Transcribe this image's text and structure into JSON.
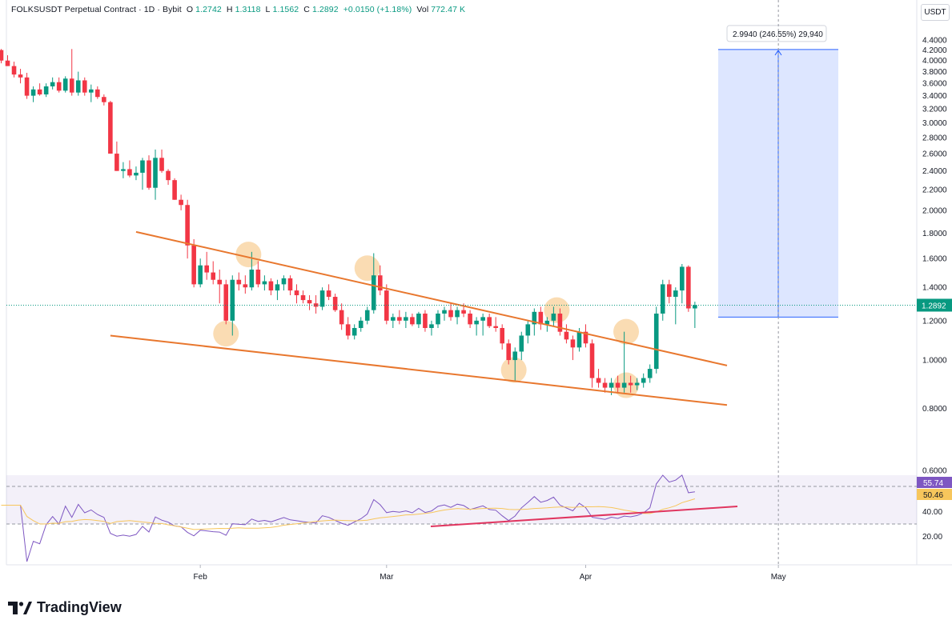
{
  "header": {
    "symbol": "FOLKSUSDT Perpetual Contract · 1D · Bybit",
    "open_label": "O",
    "open": "1.2742",
    "high_label": "H",
    "high": "1.3118",
    "low_label": "L",
    "low": "1.1562",
    "close_label": "C",
    "close": "1.2892",
    "change": "+0.0150 (+1.18%)",
    "vol_label": "Vol",
    "vol": "772.47 K"
  },
  "currency_badge": "USDT",
  "brand": "TradingView",
  "colors": {
    "up": "#089981",
    "down": "#f23645",
    "trendline": "#e8772e",
    "measure": "#2962ff",
    "rsi": "#7e57c2",
    "rsi_ma": "#f7c65c",
    "rsi_support": "#e0355f",
    "highlight": "#f8c98a"
  },
  "chart_data": {
    "type": "candlestick",
    "symbol": "FOLKSUSDT",
    "timeframe": "1D",
    "x_tick_labels": [
      "Feb",
      "Mar",
      "Apr",
      "May"
    ],
    "price_axis": {
      "scale": "log",
      "ticks": [
        "4.4000",
        "4.2000",
        "4.0000",
        "3.8000",
        "3.6000",
        "3.4000",
        "3.2000",
        "3.0000",
        "2.8000",
        "2.6000",
        "2.4000",
        "2.2000",
        "2.0000",
        "1.8000",
        "1.6000",
        "1.4000",
        "1.2000",
        "1.0000",
        "0.8000",
        "0.6000"
      ],
      "last_price": "1.2892"
    },
    "candles": [
      [
        4.2,
        4.22,
        3.95,
        4.0
      ],
      [
        4.0,
        4.1,
        3.9,
        3.9
      ],
      [
        3.9,
        3.98,
        3.7,
        3.75
      ],
      [
        3.75,
        3.85,
        3.6,
        3.7
      ],
      [
        3.7,
        3.78,
        3.35,
        3.4
      ],
      [
        3.4,
        3.55,
        3.3,
        3.5
      ],
      [
        3.5,
        3.6,
        3.4,
        3.42
      ],
      [
        3.42,
        3.6,
        3.38,
        3.55
      ],
      [
        3.55,
        3.7,
        3.5,
        3.62
      ],
      [
        3.62,
        3.7,
        3.45,
        3.48
      ],
      [
        3.48,
        3.72,
        3.45,
        3.68
      ],
      [
        3.68,
        4.22,
        3.4,
        3.45
      ],
      [
        3.45,
        3.8,
        3.4,
        3.65
      ],
      [
        3.65,
        3.7,
        3.4,
        3.45
      ],
      [
        3.45,
        3.58,
        3.3,
        3.5
      ],
      [
        3.5,
        3.55,
        3.35,
        3.38
      ],
      [
        3.38,
        3.42,
        3.25,
        3.3
      ],
      [
        3.3,
        3.32,
        2.6,
        2.6
      ],
      [
        2.6,
        2.75,
        2.4,
        2.4
      ],
      [
        2.4,
        2.5,
        2.32,
        2.42
      ],
      [
        2.42,
        2.52,
        2.33,
        2.35
      ],
      [
        2.35,
        2.45,
        2.3,
        2.38
      ],
      [
        2.38,
        2.55,
        2.2,
        2.52
      ],
      [
        2.52,
        2.58,
        2.2,
        2.22
      ],
      [
        2.22,
        2.65,
        2.1,
        2.55
      ],
      [
        2.55,
        2.65,
        2.38,
        2.4
      ],
      [
        2.4,
        2.42,
        2.25,
        2.3
      ],
      [
        2.3,
        2.32,
        2.1,
        2.1
      ],
      [
        2.1,
        2.15,
        2.0,
        2.05
      ],
      [
        2.05,
        2.1,
        1.6,
        1.7
      ],
      [
        1.7,
        1.75,
        1.4,
        1.42
      ],
      [
        1.42,
        1.6,
        1.4,
        1.55
      ],
      [
        1.55,
        1.65,
        1.45,
        1.5
      ],
      [
        1.5,
        1.58,
        1.42,
        1.45
      ],
      [
        1.45,
        1.52,
        1.3,
        1.42
      ],
      [
        1.42,
        1.45,
        1.18,
        1.2
      ],
      [
        1.2,
        1.48,
        1.12,
        1.45
      ],
      [
        1.45,
        1.5,
        1.38,
        1.42
      ],
      [
        1.42,
        1.48,
        1.36,
        1.4
      ],
      [
        1.4,
        1.65,
        1.38,
        1.52
      ],
      [
        1.52,
        1.58,
        1.4,
        1.42
      ],
      [
        1.42,
        1.48,
        1.38,
        1.44
      ],
      [
        1.44,
        1.46,
        1.35,
        1.38
      ],
      [
        1.38,
        1.45,
        1.32,
        1.42
      ],
      [
        1.42,
        1.48,
        1.38,
        1.46
      ],
      [
        1.46,
        1.48,
        1.35,
        1.38
      ],
      [
        1.38,
        1.42,
        1.3,
        1.35
      ],
      [
        1.35,
        1.38,
        1.3,
        1.32
      ],
      [
        1.32,
        1.35,
        1.26,
        1.3
      ],
      [
        1.3,
        1.35,
        1.24,
        1.28
      ],
      [
        1.28,
        1.4,
        1.26,
        1.38
      ],
      [
        1.38,
        1.42,
        1.32,
        1.34
      ],
      [
        1.34,
        1.36,
        1.25,
        1.26
      ],
      [
        1.26,
        1.3,
        1.15,
        1.18
      ],
      [
        1.18,
        1.22,
        1.1,
        1.12
      ],
      [
        1.12,
        1.18,
        1.1,
        1.16
      ],
      [
        1.16,
        1.22,
        1.14,
        1.2
      ],
      [
        1.2,
        1.28,
        1.18,
        1.26
      ],
      [
        1.26,
        1.64,
        1.24,
        1.48
      ],
      [
        1.48,
        1.55,
        1.35,
        1.38
      ],
      [
        1.38,
        1.42,
        1.18,
        1.2
      ],
      [
        1.2,
        1.24,
        1.16,
        1.22
      ],
      [
        1.22,
        1.26,
        1.18,
        1.2
      ],
      [
        1.2,
        1.25,
        1.16,
        1.22
      ],
      [
        1.22,
        1.24,
        1.17,
        1.18
      ],
      [
        1.18,
        1.25,
        1.16,
        1.24
      ],
      [
        1.24,
        1.26,
        1.14,
        1.16
      ],
      [
        1.16,
        1.2,
        1.12,
        1.18
      ],
      [
        1.18,
        1.26,
        1.16,
        1.24
      ],
      [
        1.24,
        1.28,
        1.2,
        1.26
      ],
      [
        1.26,
        1.3,
        1.2,
        1.22
      ],
      [
        1.22,
        1.28,
        1.18,
        1.26
      ],
      [
        1.26,
        1.3,
        1.22,
        1.24
      ],
      [
        1.24,
        1.26,
        1.16,
        1.18
      ],
      [
        1.18,
        1.22,
        1.12,
        1.2
      ],
      [
        1.2,
        1.24,
        1.12,
        1.22
      ],
      [
        1.22,
        1.24,
        1.16,
        1.17
      ],
      [
        1.17,
        1.22,
        1.14,
        1.16
      ],
      [
        1.16,
        1.18,
        1.05,
        1.08
      ],
      [
        1.08,
        1.1,
        0.98,
        1.0
      ],
      [
        1.0,
        1.06,
        0.91,
        1.04
      ],
      [
        1.04,
        1.14,
        1.0,
        1.12
      ],
      [
        1.12,
        1.2,
        1.08,
        1.18
      ],
      [
        1.18,
        1.27,
        1.12,
        1.25
      ],
      [
        1.25,
        1.28,
        1.15,
        1.18
      ],
      [
        1.18,
        1.22,
        1.14,
        1.2
      ],
      [
        1.2,
        1.28,
        1.17,
        1.24
      ],
      [
        1.24,
        1.27,
        1.12,
        1.14
      ],
      [
        1.14,
        1.18,
        1.08,
        1.1
      ],
      [
        1.1,
        1.12,
        1.0,
        1.06
      ],
      [
        1.06,
        1.16,
        1.04,
        1.14
      ],
      [
        1.14,
        1.18,
        1.06,
        1.08
      ],
      [
        1.08,
        1.1,
        0.88,
        0.92
      ],
      [
        0.92,
        0.96,
        0.88,
        0.9
      ],
      [
        0.9,
        0.92,
        0.86,
        0.88
      ],
      [
        0.88,
        0.92,
        0.85,
        0.9
      ],
      [
        0.9,
        0.93,
        0.86,
        0.88
      ],
      [
        0.88,
        1.14,
        0.86,
        0.9
      ],
      [
        0.9,
        0.93,
        0.86,
        0.89
      ],
      [
        0.89,
        0.92,
        0.87,
        0.9
      ],
      [
        0.9,
        0.94,
        0.88,
        0.92
      ],
      [
        0.92,
        0.98,
        0.9,
        0.96
      ],
      [
        0.96,
        1.28,
        0.94,
        1.24
      ],
      [
        1.24,
        1.45,
        1.2,
        1.42
      ],
      [
        1.42,
        1.45,
        1.3,
        1.34
      ],
      [
        1.34,
        1.4,
        1.18,
        1.38
      ],
      [
        1.38,
        1.56,
        1.3,
        1.54
      ],
      [
        1.54,
        1.55,
        1.25,
        1.27
      ],
      [
        1.27,
        1.31,
        1.16,
        1.29
      ]
    ],
    "trendlines": [
      {
        "name": "falling wedge upper",
        "points": [
          [
            "Jan 22",
            1.81
          ],
          [
            "Apr 23",
            0.975
          ]
        ]
      },
      {
        "name": "falling wedge lower",
        "points": [
          [
            "Jan 18",
            1.12
          ],
          [
            "Apr 23",
            0.812
          ]
        ]
      }
    ],
    "measure_tool": {
      "label": "2.9940 (246.55%) 29,940",
      "from_price": 1.22,
      "to_price": 4.21
    },
    "rsi": {
      "ticks": [
        "20.00",
        "40.00"
      ],
      "value": "55.74",
      "ma_value": "50.46",
      "upper_band": 60,
      "lower_band": 30
    }
  }
}
